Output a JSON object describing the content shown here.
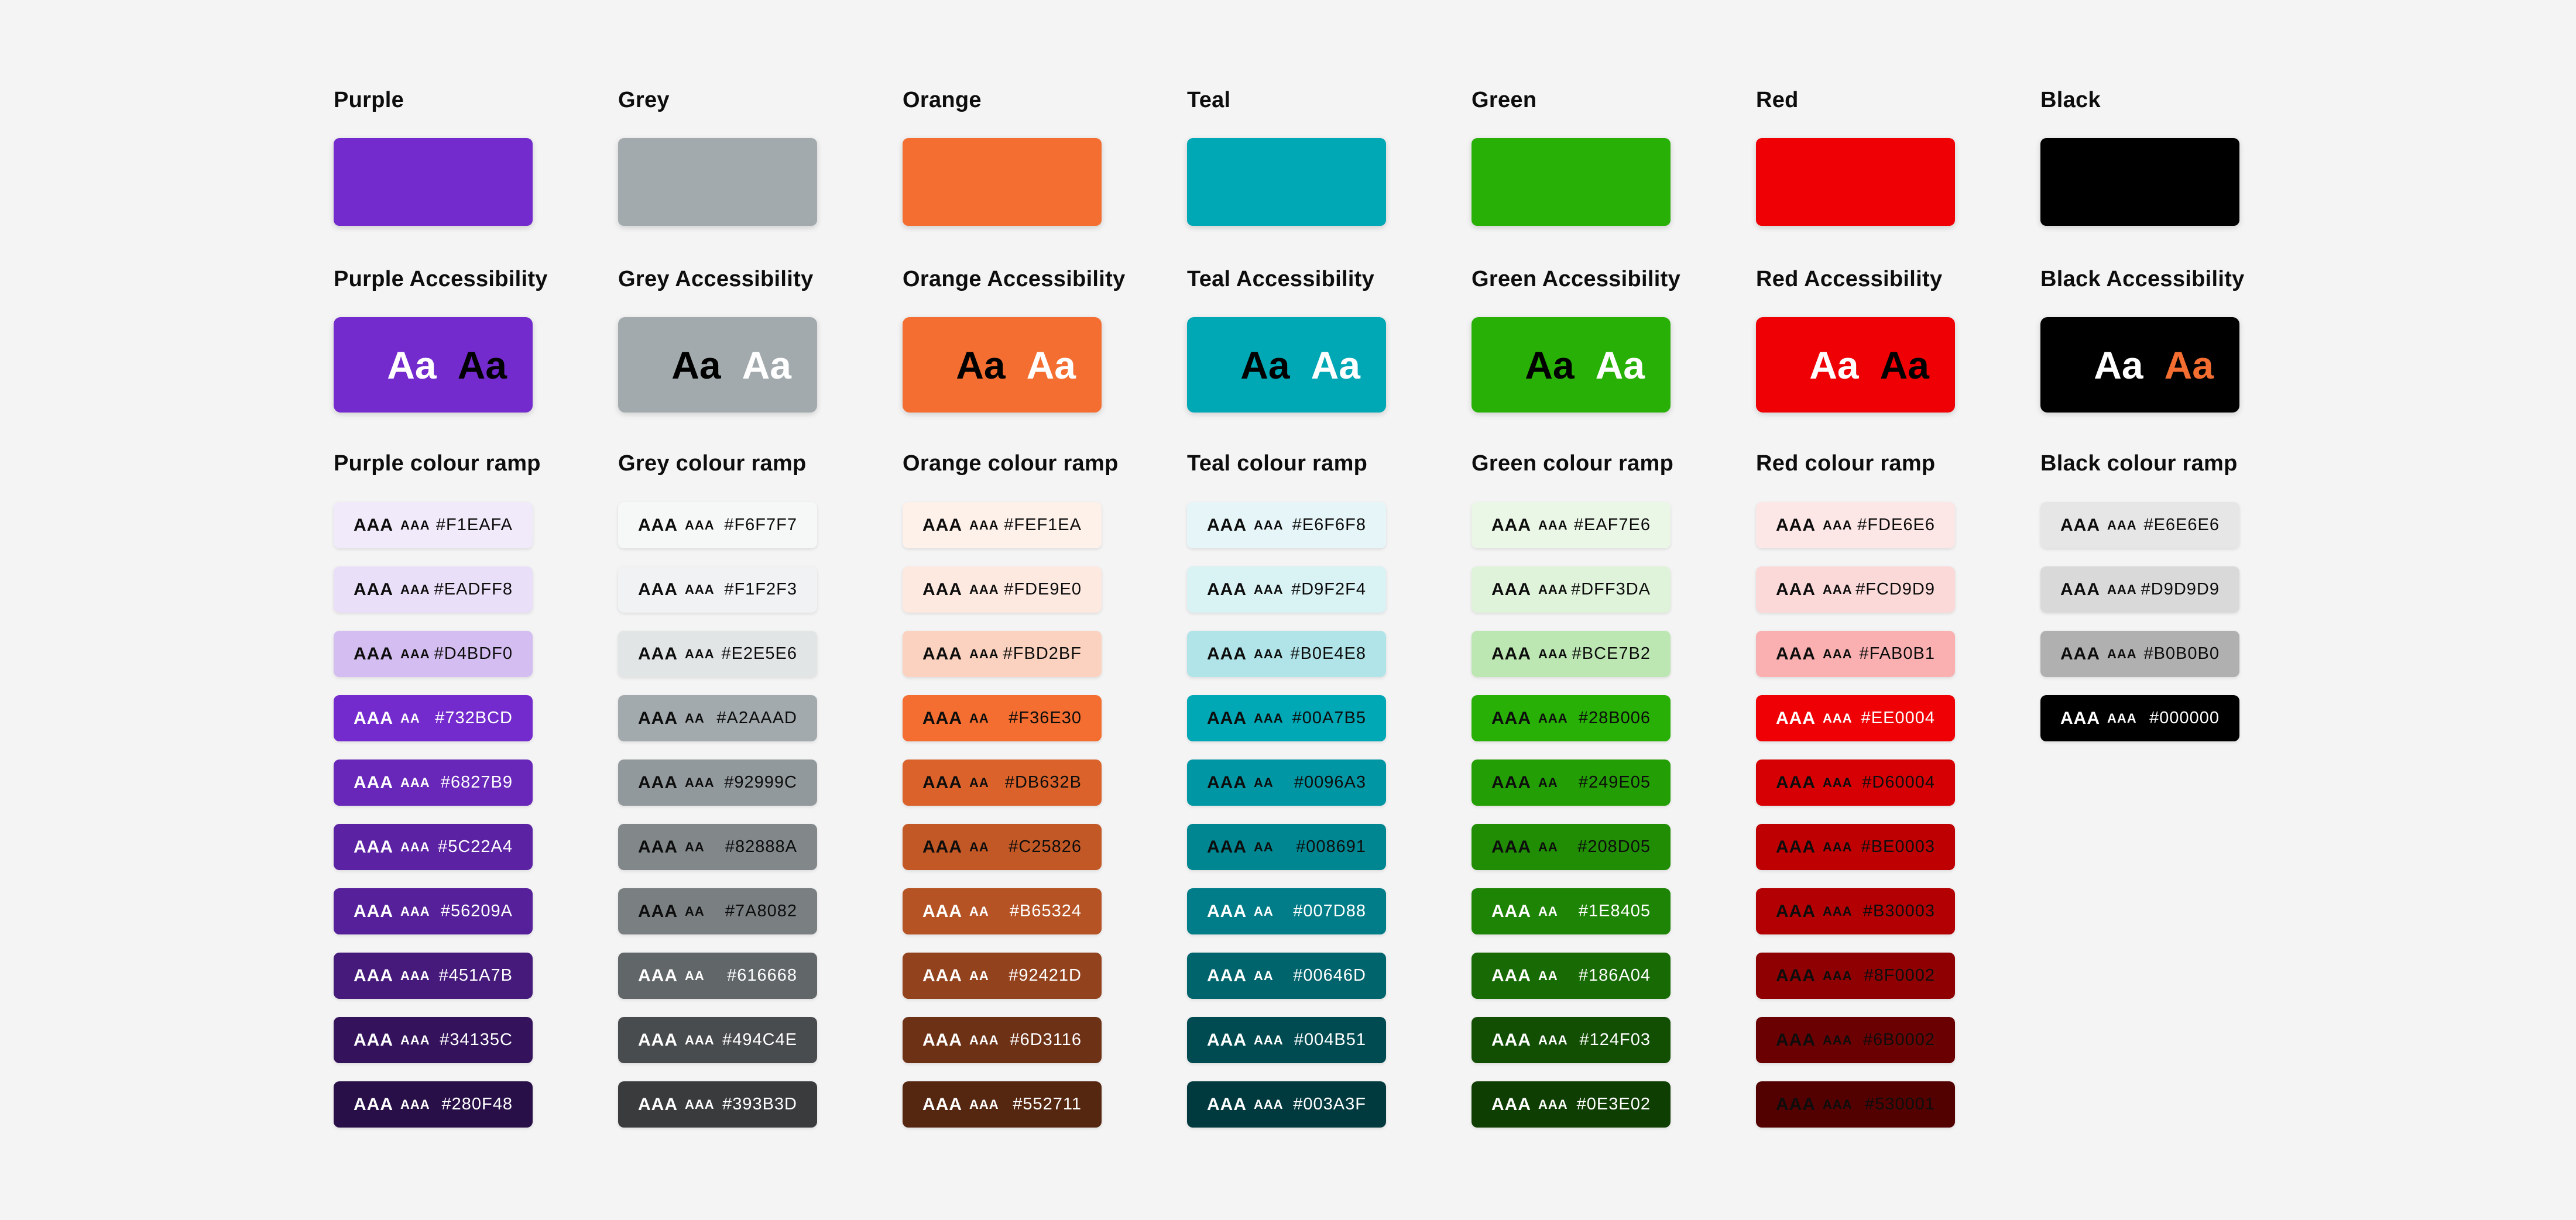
{
  "page": {
    "background": "#F4F4F4",
    "text_color": "#0D0D0D"
  },
  "columns": [
    {
      "title": "Purple",
      "accessibility_title": "Purple Accessibility",
      "ramp_title": "Purple colour ramp",
      "swatch_color": "#732BCD",
      "aa_samples": [
        {
          "text": "Aa",
          "color": "#FFFFFF"
        },
        {
          "text": "Aa",
          "color": "#000000"
        }
      ],
      "ramp": [
        {
          "hex": "#F1EAFA",
          "badge_large": "AAA",
          "badge_small": "AAA",
          "fg": "#0D0D0D"
        },
        {
          "hex": "#EADFF8",
          "badge_large": "AAA",
          "badge_small": "AAA",
          "fg": "#0D0D0D"
        },
        {
          "hex": "#D4BDF0",
          "badge_large": "AAA",
          "badge_small": "AAA",
          "fg": "#0D0D0D"
        },
        {
          "hex": "#732BCD",
          "badge_large": "AAA",
          "badge_small": "AA",
          "fg": "#FFFFFF"
        },
        {
          "hex": "#6827B9",
          "badge_large": "AAA",
          "badge_small": "AAA",
          "fg": "#FFFFFF"
        },
        {
          "hex": "#5C22A4",
          "badge_large": "AAA",
          "badge_small": "AAA",
          "fg": "#FFFFFF"
        },
        {
          "hex": "#56209A",
          "badge_large": "AAA",
          "badge_small": "AAA",
          "fg": "#FFFFFF"
        },
        {
          "hex": "#451A7B",
          "badge_large": "AAA",
          "badge_small": "AAA",
          "fg": "#FFFFFF"
        },
        {
          "hex": "#34135C",
          "badge_large": "AAA",
          "badge_small": "AAA",
          "fg": "#FFFFFF"
        },
        {
          "hex": "#280F48",
          "badge_large": "AAA",
          "badge_small": "AAA",
          "fg": "#FFFFFF"
        }
      ]
    },
    {
      "title": "Grey",
      "accessibility_title": "Grey Accessibility",
      "ramp_title": "Grey colour ramp",
      "swatch_color": "#A2AAAD",
      "aa_samples": [
        {
          "text": "Aa",
          "color": "#000000"
        },
        {
          "text": "Aa",
          "color": "#FFFFFF"
        }
      ],
      "ramp": [
        {
          "hex": "#F6F7F7",
          "badge_large": "AAA",
          "badge_small": "AAA",
          "fg": "#0D0D0D"
        },
        {
          "hex": "#F1F2F3",
          "badge_large": "AAA",
          "badge_small": "AAA",
          "fg": "#0D0D0D"
        },
        {
          "hex": "#E2E5E6",
          "badge_large": "AAA",
          "badge_small": "AAA",
          "fg": "#0D0D0D"
        },
        {
          "hex": "#A2AAAD",
          "badge_large": "AAA",
          "badge_small": "AA",
          "fg": "#0D0D0D"
        },
        {
          "hex": "#92999C",
          "badge_large": "AAA",
          "badge_small": "AAA",
          "fg": "#0D0D0D"
        },
        {
          "hex": "#82888A",
          "badge_large": "AAA",
          "badge_small": "AA",
          "fg": "#0D0D0D"
        },
        {
          "hex": "#7A8082",
          "badge_large": "AAA",
          "badge_small": "AA",
          "fg": "#0D0D0D"
        },
        {
          "hex": "#616668",
          "badge_large": "AAA",
          "badge_small": "AA",
          "fg": "#FFFFFF"
        },
        {
          "hex": "#494C4E",
          "badge_large": "AAA",
          "badge_small": "AAA",
          "fg": "#FFFFFF"
        },
        {
          "hex": "#393B3D",
          "badge_large": "AAA",
          "badge_small": "AAA",
          "fg": "#FFFFFF"
        }
      ]
    },
    {
      "title": "Orange",
      "accessibility_title": "Orange Accessibility",
      "ramp_title": "Orange colour ramp",
      "swatch_color": "#F36E30",
      "aa_samples": [
        {
          "text": "Aa",
          "color": "#000000"
        },
        {
          "text": "Aa",
          "color": "#FFFFFF"
        }
      ],
      "ramp": [
        {
          "hex": "#FEF1EA",
          "badge_large": "AAA",
          "badge_small": "AAA",
          "fg": "#0D0D0D"
        },
        {
          "hex": "#FDE9E0",
          "badge_large": "AAA",
          "badge_small": "AAA",
          "fg": "#0D0D0D"
        },
        {
          "hex": "#FBD2BF",
          "badge_large": "AAA",
          "badge_small": "AAA",
          "fg": "#0D0D0D"
        },
        {
          "hex": "#F36E30",
          "badge_large": "AAA",
          "badge_small": "AA",
          "fg": "#0D0D0D"
        },
        {
          "hex": "#DB632B",
          "badge_large": "AAA",
          "badge_small": "AA",
          "fg": "#0D0D0D"
        },
        {
          "hex": "#C25826",
          "badge_large": "AAA",
          "badge_small": "AA",
          "fg": "#0D0D0D"
        },
        {
          "hex": "#B65324",
          "badge_large": "AAA",
          "badge_small": "AA",
          "fg": "#FFFFFF"
        },
        {
          "hex": "#92421D",
          "badge_large": "AAA",
          "badge_small": "AA",
          "fg": "#FFFFFF"
        },
        {
          "hex": "#6D3116",
          "badge_large": "AAA",
          "badge_small": "AAA",
          "fg": "#FFFFFF"
        },
        {
          "hex": "#552711",
          "badge_large": "AAA",
          "badge_small": "AAA",
          "fg": "#FFFFFF"
        }
      ]
    },
    {
      "title": "Teal",
      "accessibility_title": "Teal Accessibility",
      "ramp_title": "Teal colour ramp",
      "swatch_color": "#00A7B5",
      "aa_samples": [
        {
          "text": "Aa",
          "color": "#000000"
        },
        {
          "text": "Aa",
          "color": "#FFFFFF"
        }
      ],
      "ramp": [
        {
          "hex": "#E6F6F8",
          "badge_large": "AAA",
          "badge_small": "AAA",
          "fg": "#0D0D0D"
        },
        {
          "hex": "#D9F2F4",
          "badge_large": "AAA",
          "badge_small": "AAA",
          "fg": "#0D0D0D"
        },
        {
          "hex": "#B0E4E8",
          "badge_large": "AAA",
          "badge_small": "AAA",
          "fg": "#0D0D0D"
        },
        {
          "hex": "#00A7B5",
          "badge_large": "AAA",
          "badge_small": "AAA",
          "fg": "#0D0D0D"
        },
        {
          "hex": "#0096A3",
          "badge_large": "AAA",
          "badge_small": "AA",
          "fg": "#0D0D0D"
        },
        {
          "hex": "#008691",
          "badge_large": "AAA",
          "badge_small": "AA",
          "fg": "#0D0D0D"
        },
        {
          "hex": "#007D88",
          "badge_large": "AAA",
          "badge_small": "AA",
          "fg": "#FFFFFF"
        },
        {
          "hex": "#00646D",
          "badge_large": "AAA",
          "badge_small": "AA",
          "fg": "#FFFFFF"
        },
        {
          "hex": "#004B51",
          "badge_large": "AAA",
          "badge_small": "AAA",
          "fg": "#FFFFFF"
        },
        {
          "hex": "#003A3F",
          "badge_large": "AAA",
          "badge_small": "AAA",
          "fg": "#FFFFFF"
        }
      ]
    },
    {
      "title": "Green",
      "accessibility_title": "Green Accessibility",
      "ramp_title": "Green colour ramp",
      "swatch_color": "#28B006",
      "aa_samples": [
        {
          "text": "Aa",
          "color": "#000000"
        },
        {
          "text": "Aa",
          "color": "#FFFFFF"
        }
      ],
      "ramp": [
        {
          "hex": "#EAF7E6",
          "badge_large": "AAA",
          "badge_small": "AAA",
          "fg": "#0D0D0D"
        },
        {
          "hex": "#DFF3DA",
          "badge_large": "AAA",
          "badge_small": "AAA",
          "fg": "#0D0D0D"
        },
        {
          "hex": "#BCE7B2",
          "badge_large": "AAA",
          "badge_small": "AAA",
          "fg": "#0D0D0D"
        },
        {
          "hex": "#28B006",
          "badge_large": "AAA",
          "badge_small": "AAA",
          "fg": "#0D0D0D"
        },
        {
          "hex": "#249E05",
          "badge_large": "AAA",
          "badge_small": "AA",
          "fg": "#0D0D0D"
        },
        {
          "hex": "#208D05",
          "badge_large": "AAA",
          "badge_small": "AA",
          "fg": "#0D0D0D"
        },
        {
          "hex": "#1E8405",
          "badge_large": "AAA",
          "badge_small": "AA",
          "fg": "#FFFFFF"
        },
        {
          "hex": "#186A04",
          "badge_large": "AAA",
          "badge_small": "AA",
          "fg": "#FFFFFF"
        },
        {
          "hex": "#124F03",
          "badge_large": "AAA",
          "badge_small": "AAA",
          "fg": "#FFFFFF"
        },
        {
          "hex": "#0E3E02",
          "badge_large": "AAA",
          "badge_small": "AAA",
          "fg": "#FFFFFF"
        }
      ]
    },
    {
      "title": "Red",
      "accessibility_title": "Red Accessibility",
      "ramp_title": "Red colour ramp",
      "swatch_color": "#EE0004",
      "aa_samples": [
        {
          "text": "Aa",
          "color": "#FFFFFF"
        },
        {
          "text": "Aa",
          "color": "#000000"
        }
      ],
      "ramp": [
        {
          "hex": "#FDE6E6",
          "badge_large": "AAA",
          "badge_small": "AAA",
          "fg": "#0D0D0D"
        },
        {
          "hex": "#FCD9D9",
          "badge_large": "AAA",
          "badge_small": "AAA",
          "fg": "#0D0D0D"
        },
        {
          "hex": "#FAB0B1",
          "badge_large": "AAA",
          "badge_small": "AAA",
          "fg": "#0D0D0D"
        },
        {
          "hex": "#EE0004",
          "badge_large": "AAA",
          "badge_small": "AAA",
          "fg": "#FFFFFF"
        },
        {
          "hex": "#D60004",
          "badge_large": "AAA",
          "badge_small": "AAA",
          "fg": "#0D0D0D"
        },
        {
          "hex": "#BE0003",
          "badge_large": "AAA",
          "badge_small": "AAA",
          "fg": "#0D0D0D"
        },
        {
          "hex": "#B30003",
          "badge_large": "AAA",
          "badge_small": "AAA",
          "fg": "#0D0D0D"
        },
        {
          "hex": "#8F0002",
          "badge_large": "AAA",
          "badge_small": "AAA",
          "fg": "#0D0D0D"
        },
        {
          "hex": "#6B0002",
          "badge_large": "AAA",
          "badge_small": "AAA",
          "fg": "#0D0D0D"
        },
        {
          "hex": "#530001",
          "badge_large": "AAA",
          "badge_small": "AAA",
          "fg": "#0D0D0D"
        }
      ]
    },
    {
      "title": "Black",
      "accessibility_title": "Black Accessibility",
      "ramp_title": "Black colour ramp",
      "swatch_color": "#000000",
      "aa_samples": [
        {
          "text": "Aa",
          "color": "#FFFFFF"
        },
        {
          "text": "Aa",
          "color": "#F36E30"
        }
      ],
      "ramp": [
        {
          "hex": "#E6E6E6",
          "badge_large": "AAA",
          "badge_small": "AAA",
          "fg": "#0D0D0D"
        },
        {
          "hex": "#D9D9D9",
          "badge_large": "AAA",
          "badge_small": "AAA",
          "fg": "#0D0D0D"
        },
        {
          "hex": "#B0B0B0",
          "badge_large": "AAA",
          "badge_small": "AAA",
          "fg": "#0D0D0D"
        },
        {
          "hex": "#000000",
          "badge_large": "AAA",
          "badge_small": "AAA",
          "fg": "#FFFFFF"
        }
      ]
    }
  ]
}
